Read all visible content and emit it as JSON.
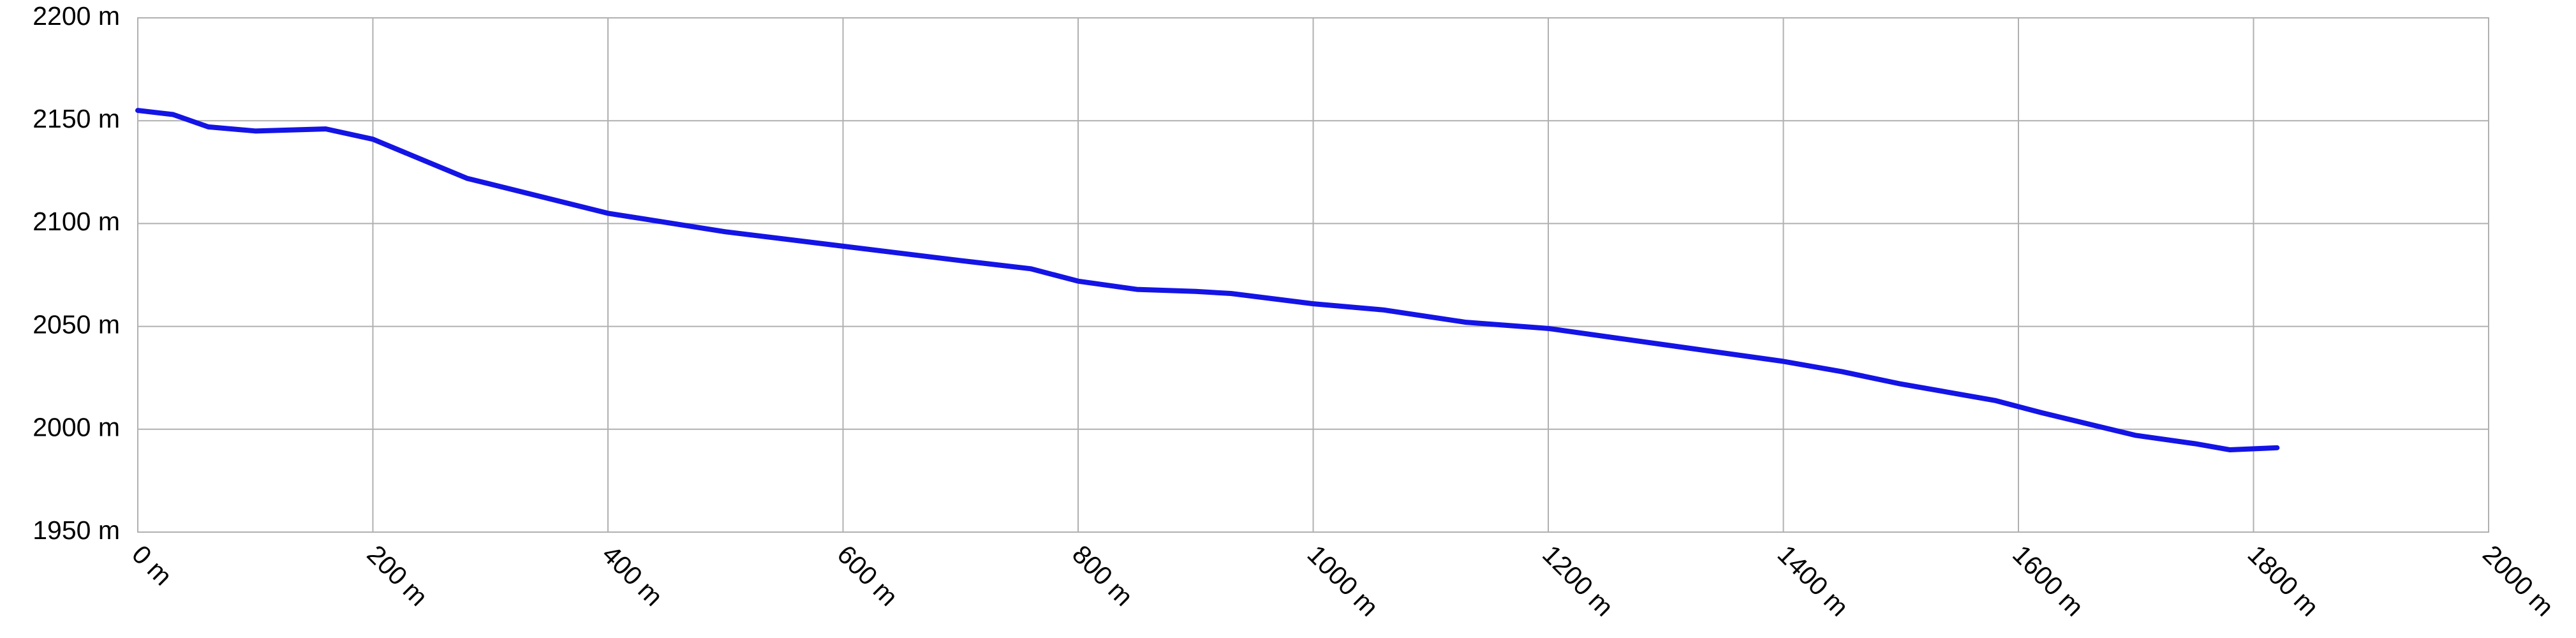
{
  "chart_data": {
    "type": "line",
    "x": [
      0,
      30,
      60,
      100,
      160,
      200,
      280,
      400,
      500,
      600,
      700,
      760,
      800,
      850,
      900,
      930,
      1000,
      1060,
      1130,
      1200,
      1300,
      1400,
      1450,
      1500,
      1580,
      1620,
      1700,
      1750,
      1780,
      1820
    ],
    "series": [
      {
        "color": "#1414e6",
        "values": [
          2155,
          2153,
          2147,
          2145,
          2146,
          2141,
          2122,
          2105,
          2096,
          2089,
          2082,
          2078,
          2072,
          2068,
          2067,
          2066,
          2061,
          2058,
          2052,
          2049,
          2041,
          2033,
          2028,
          2022,
          2014,
          2008,
          1997,
          1993,
          1990,
          1991
        ]
      }
    ],
    "xlim": [
      0,
      2000
    ],
    "xticks": [
      {
        "value": 0,
        "label": "0 m"
      },
      {
        "value": 200,
        "label": "200 m"
      },
      {
        "value": 400,
        "label": "400 m"
      },
      {
        "value": 600,
        "label": "600 m"
      },
      {
        "value": 800,
        "label": "800 m"
      },
      {
        "value": 1000,
        "label": "1000 m"
      },
      {
        "value": 1200,
        "label": "1200 m"
      },
      {
        "value": 1400,
        "label": "1400 m"
      },
      {
        "value": 1600,
        "label": "1600 m"
      },
      {
        "value": 1800,
        "label": "1800 m"
      },
      {
        "value": 2000,
        "label": "2000 m"
      }
    ],
    "ylim": [
      1950,
      2200
    ],
    "yticks": [
      {
        "value": 1950,
        "label": "1950 m"
      },
      {
        "value": 2000,
        "label": "2000 m"
      },
      {
        "value": 2050,
        "label": "2050 m"
      },
      {
        "value": 2100,
        "label": "2100 m"
      },
      {
        "value": 2150,
        "label": "2150 m"
      },
      {
        "value": 2200,
        "label": "2200 m"
      }
    ],
    "grid": true
  }
}
